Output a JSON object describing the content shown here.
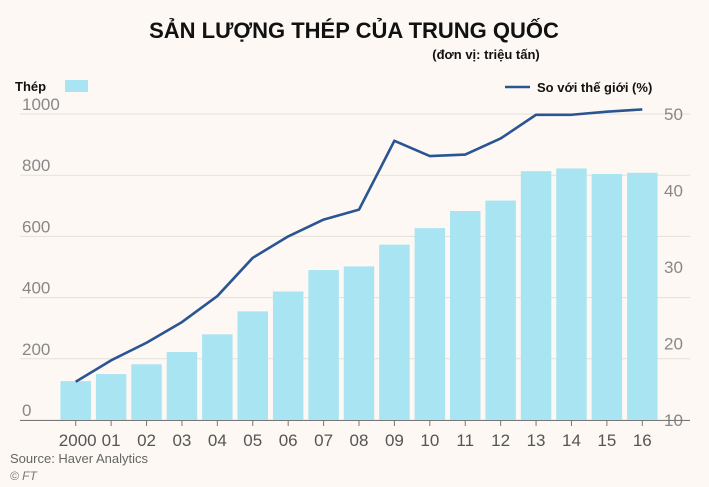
{
  "chart_data": {
    "type": "bar",
    "title": "SẢN LƯỢNG THÉP CỦA TRUNG QUỐC",
    "subtitle": "(đơn vị: triệu tấn)",
    "categories": [
      "2000",
      "01",
      "02",
      "03",
      "04",
      "05",
      "06",
      "07",
      "08",
      "09",
      "10",
      "11",
      "12",
      "13",
      "14",
      "15",
      "16"
    ],
    "series": [
      {
        "name": "Thép",
        "type": "bar",
        "axis": "left",
        "color": "#a8e4f2",
        "values": [
          127,
          150,
          182,
          222,
          280,
          355,
          420,
          490,
          502,
          573,
          627,
          683,
          717,
          813,
          822,
          804,
          808
        ]
      },
      {
        "name": "So với thế giới (%)",
        "type": "line",
        "axis": "right",
        "color": "#2a5592",
        "values": [
          15.0,
          17.8,
          20.1,
          22.8,
          26.2,
          31.2,
          34.0,
          36.2,
          37.5,
          46.5,
          44.5,
          44.7,
          46.8,
          49.9,
          49.9,
          50.3,
          50.6
        ]
      }
    ],
    "yticks_left": [
      "0",
      "200",
      "400",
      "600",
      "800",
      "1000"
    ],
    "ylim_left": [
      0,
      1000
    ],
    "yticks_right": [
      "10",
      "20",
      "30",
      "40",
      "50"
    ],
    "ylim_right": [
      10,
      50
    ],
    "grid": true,
    "legend": "top",
    "source": "Source: Haver Analytics",
    "credit": "© FT"
  }
}
